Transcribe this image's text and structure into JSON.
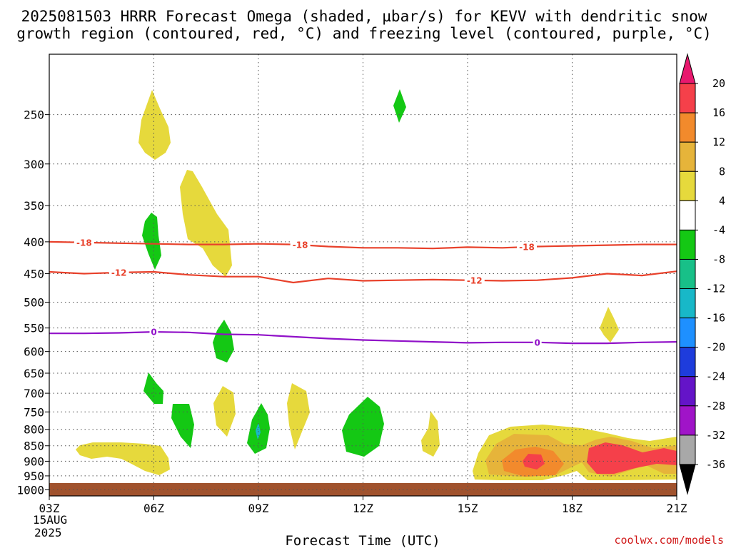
{
  "chart_data": {
    "type": "heatmap",
    "title_line1": "2025081503 HRRR Forecast Omega (shaded, µbar/s) for KEVV with dendritic snow",
    "title_line2": "growth region (contoured, red, °C) and freezing level (contoured, purple, °C)",
    "xlabel": "Forecast Time (UTC)",
    "credit": "coolwx.com/models",
    "x_ticks": [
      {
        "hour": 3,
        "label": "03Z"
      },
      {
        "hour": 6,
        "label": "06Z"
      },
      {
        "hour": 9,
        "label": "09Z"
      },
      {
        "hour": 12,
        "label": "12Z"
      },
      {
        "hour": 15,
        "label": "15Z"
      },
      {
        "hour": 18,
        "label": "18Z"
      },
      {
        "hour": 21,
        "label": "21Z"
      }
    ],
    "x_date_line1": "15AUG",
    "x_date_line2": "2025",
    "x_range_hours": [
      3,
      21
    ],
    "y_ticks_hpa": [
      250,
      300,
      350,
      400,
      450,
      500,
      550,
      600,
      650,
      700,
      750,
      800,
      850,
      900,
      950,
      1000
    ],
    "y_range_hpa": [
      200,
      1023
    ],
    "y_scale": "log-pressure",
    "grid": "dotted",
    "colorbar": {
      "labels": [
        "20",
        "16",
        "12",
        "8",
        "4",
        "-4",
        "-8",
        "-12",
        "-16",
        "-20",
        "-24",
        "-28",
        "-32",
        "-36"
      ],
      "colors": [
        "#e8186e",
        "#f5404a",
        "#f28a2c",
        "#e6b43a",
        "#e6d93c",
        "#ffffff",
        "#14c814",
        "#18c088",
        "#18b8c8",
        "#1e90ff",
        "#1e3cdc",
        "#6414c8",
        "#a014c8",
        "#a8a8a8",
        "#000000"
      ]
    },
    "omega_regions": [
      {
        "value_range": [
          4,
          8
        ],
        "color": "#e6d93c",
        "center": [
          6.15,
          280
        ]
      },
      {
        "value_range": [
          4,
          8
        ],
        "color": "#e6d93c",
        "center": [
          7.4,
          395
        ]
      },
      {
        "value_range": [
          -8,
          -4
        ],
        "color": "#14c814",
        "center": [
          5.9,
          415
        ]
      },
      {
        "value_range": [
          -8,
          -4
        ],
        "color": "#14c814",
        "center": [
          13.0,
          255
        ]
      },
      {
        "value_range": [
          -8,
          -4
        ],
        "color": "#14c814",
        "center": [
          7.95,
          610
        ]
      },
      {
        "value_range": [
          4,
          8
        ],
        "color": "#e6d93c",
        "center": [
          18.95,
          575
        ]
      },
      {
        "value_range": [
          -8,
          -4
        ],
        "color": "#14c814",
        "center": [
          6.0,
          720
        ]
      },
      {
        "value_range": [
          -8,
          -4
        ],
        "color": "#14c814",
        "center": [
          6.8,
          810
        ]
      },
      {
        "value_range": [
          4,
          8
        ],
        "color": "#e6d93c",
        "center": [
          7.95,
          770
        ]
      },
      {
        "value_range": [
          -8,
          -4
        ],
        "color": "#14c814",
        "center": [
          9.0,
          840
        ]
      },
      {
        "value_range": [
          4,
          8
        ],
        "color": "#e6d93c",
        "center": [
          10.1,
          790
        ]
      },
      {
        "value_range": [
          -8,
          -4
        ],
        "color": "#14c814",
        "center": [
          12.0,
          840
        ]
      },
      {
        "value_range": [
          4,
          8
        ],
        "color": "#e6d93c",
        "center": [
          13.9,
          845
        ]
      },
      {
        "value_range": [
          4,
          8
        ],
        "color": "#e6d93c",
        "center": [
          4.6,
          900
        ]
      },
      {
        "value_range": [
          4,
          8
        ],
        "color": "#e6d93c",
        "center": [
          18.0,
          920
        ]
      },
      {
        "value_range": [
          8,
          12
        ],
        "color": "#e6b43a",
        "center": [
          18.0,
          920
        ]
      },
      {
        "value_range": [
          12,
          16
        ],
        "color": "#f28a2c",
        "center": [
          17.0,
          925
        ]
      },
      {
        "value_range": [
          16,
          20
        ],
        "color": "#f5404a",
        "center": [
          17.0,
          925
        ]
      },
      {
        "value_range": [
          16,
          20
        ],
        "color": "#f5404a",
        "center": [
          19.0,
          920
        ]
      }
    ],
    "contours": [
      {
        "value": -18,
        "label": "-18",
        "color": "#e8402a",
        "points": [
          [
            3,
            400
          ],
          [
            4,
            401
          ],
          [
            5,
            402
          ],
          [
            6,
            403
          ],
          [
            7,
            404
          ],
          [
            8,
            404
          ],
          [
            9,
            403
          ],
          [
            10,
            404
          ],
          [
            11,
            407
          ],
          [
            12,
            409
          ],
          [
            13,
            409
          ],
          [
            14,
            410
          ],
          [
            15,
            408
          ],
          [
            16,
            409
          ],
          [
            17,
            407
          ],
          [
            18,
            406
          ],
          [
            19,
            405
          ],
          [
            20,
            404
          ],
          [
            21,
            404
          ]
        ]
      },
      {
        "value": -12,
        "label": "-12",
        "color": "#e8402a",
        "points": [
          [
            3,
            447
          ],
          [
            4,
            450
          ],
          [
            5,
            448
          ],
          [
            6,
            447
          ],
          [
            7,
            452
          ],
          [
            8,
            455
          ],
          [
            9,
            455
          ],
          [
            10,
            465
          ],
          [
            11,
            458
          ],
          [
            12,
            462
          ],
          [
            13,
            461
          ],
          [
            14,
            460
          ],
          [
            15,
            461
          ],
          [
            16,
            462
          ],
          [
            17,
            461
          ],
          [
            18,
            457
          ],
          [
            19,
            450
          ],
          [
            20,
            453
          ],
          [
            21,
            446
          ]
        ]
      },
      {
        "value": 0,
        "label": "0",
        "color": "#9010c8",
        "points": [
          [
            3,
            561
          ],
          [
            4,
            561
          ],
          [
            5,
            560
          ],
          [
            6,
            558
          ],
          [
            7,
            559
          ],
          [
            8,
            563
          ],
          [
            9,
            564
          ],
          [
            10,
            568
          ],
          [
            11,
            572
          ],
          [
            12,
            575
          ],
          [
            13,
            577
          ],
          [
            14,
            579
          ],
          [
            15,
            581
          ],
          [
            16,
            580
          ],
          [
            17,
            580
          ],
          [
            18,
            582
          ],
          [
            19,
            582
          ],
          [
            20,
            580
          ],
          [
            21,
            579
          ]
        ]
      }
    ],
    "contour_label_positions": [
      {
        "value": -18,
        "label": "-18",
        "hours": [
          4.0,
          10.2,
          16.7
        ]
      },
      {
        "value": -12,
        "label": "-12",
        "hours": [
          5.0,
          15.2
        ]
      },
      {
        "value": 0,
        "label": "0",
        "hours": [
          6.0,
          17.0
        ]
      }
    ],
    "surface_shading_hpa": [
      1000,
      1023
    ]
  }
}
